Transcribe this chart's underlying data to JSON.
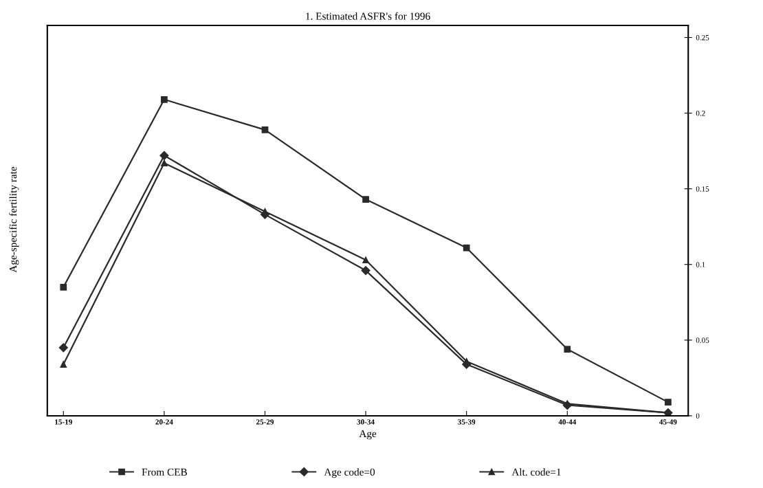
{
  "chart_data": {
    "type": "line",
    "title": "1. Estimated ASFR's for 1996",
    "xlabel": "Age",
    "ylabel": "Age-specific fertility rate",
    "categories": [
      "15-19",
      "20-24",
      "25-29",
      "30-34",
      "35-39",
      "40-44",
      "45-49"
    ],
    "series": [
      {
        "name": "From CEB",
        "color": "#2a2a2a",
        "marker": "square",
        "values": [
          0.085,
          0.209,
          0.189,
          0.143,
          0.111,
          0.044,
          0.009
        ]
      },
      {
        "name": "Age code=0",
        "color": "#2a2a2a",
        "marker": "diamond",
        "values": [
          0.045,
          0.172,
          0.133,
          0.096,
          0.034,
          0.007,
          0.002
        ]
      },
      {
        "name": "Alt. code=1",
        "color": "#2a2a2a",
        "marker": "triangle",
        "values": [
          0.034,
          0.167,
          0.135,
          0.103,
          0.036,
          0.008,
          0.002
        ]
      }
    ],
    "ylim": [
      0,
      0.258
    ],
    "yticks": [
      0,
      0.05,
      0.1,
      0.15,
      0.2,
      0.25
    ],
    "grid": false,
    "legend": "bottom",
    "line_style": "solid"
  }
}
